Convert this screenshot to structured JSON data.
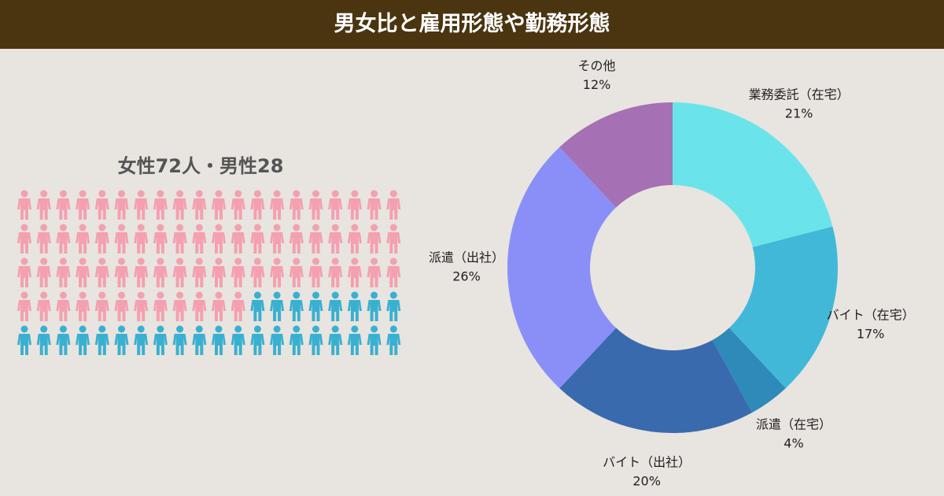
{
  "header": {
    "title": "男女比と雇用形態や勤務形態"
  },
  "chart_data": [
    {
      "type": "pictogram",
      "title": "女性72人・男性28",
      "values": [
        72,
        28
      ],
      "colors": [
        "#f4a0b0",
        "#3ab0d0"
      ],
      "columns": 20
    },
    {
      "type": "pie",
      "categories": [
        "業務委託（在宅）",
        "バイト（在宅）",
        "派遣（在宅）",
        "バイト（出社）",
        "派遣（出社）",
        "その他"
      ],
      "values": [
        21,
        17,
        4,
        20,
        26,
        12
      ],
      "value_labels": [
        "21%",
        "17%",
        "4%",
        "20%",
        "26%",
        "12%"
      ],
      "colors": [
        "#6ae4ea",
        "#42b8d8",
        "#2e8ab8",
        "#3a6aae",
        "#8a8ff8",
        "#a570b4"
      ]
    }
  ]
}
